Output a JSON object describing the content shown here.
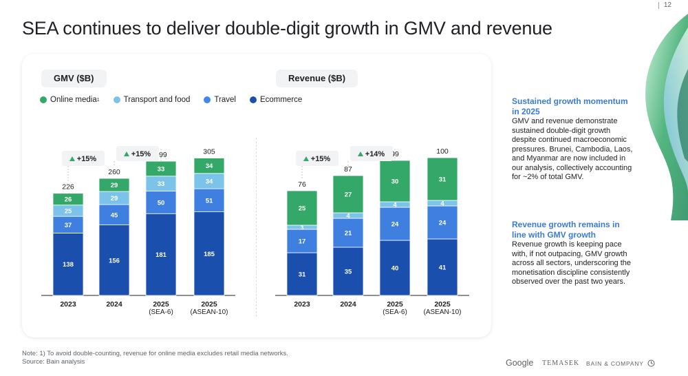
{
  "page_number": "12",
  "title": "SEA continues to deliver double-digit growth in GMV and revenue",
  "gmv_label": "GMV ($B)",
  "revenue_label": "Revenue ($B)",
  "legend": {
    "online": "Online media",
    "online_sup": "1",
    "transport": "Transport and food",
    "travel": "Travel",
    "ecommerce": "Ecommerce"
  },
  "colors": {
    "ecommerce": "#1a4fae",
    "travel": "#3e7fe0",
    "transport": "#7cc3ea",
    "online": "#34a868"
  },
  "chart_data": [
    {
      "type": "bar",
      "stacked": true,
      "title": "GMV ($B)",
      "categories": [
        "2023",
        "2024",
        "2025 (SEA-6)",
        "2025 (ASEAN-10)"
      ],
      "category_lines": [
        [
          "2023"
        ],
        [
          "2024"
        ],
        [
          "2025",
          "(SEA-6)"
        ],
        [
          "2025",
          "(ASEAN-10)"
        ]
      ],
      "series": [
        {
          "name": "Ecommerce",
          "values": [
            138,
            156,
            181,
            185
          ]
        },
        {
          "name": "Travel",
          "values": [
            37,
            45,
            50,
            51
          ]
        },
        {
          "name": "Transport and food",
          "values": [
            25,
            29,
            33,
            34
          ]
        },
        {
          "name": "Online media",
          "values": [
            26,
            29,
            33,
            34
          ]
        }
      ],
      "totals": [
        226,
        260,
        299,
        305
      ],
      "growth": [
        "+15%",
        "+15%"
      ],
      "ylim": [
        0,
        320
      ]
    },
    {
      "type": "bar",
      "stacked": true,
      "title": "Revenue ($B)",
      "categories": [
        "2023",
        "2024",
        "2025 (SEA-6)",
        "2025 (ASEAN-10)"
      ],
      "category_lines": [
        [
          "2023"
        ],
        [
          "2024"
        ],
        [
          "2025",
          "(SEA-6)"
        ],
        [
          "2025",
          "(ASEAN-10)"
        ]
      ],
      "series": [
        {
          "name": "Ecommerce",
          "values": [
            31,
            35,
            40,
            41
          ]
        },
        {
          "name": "Travel",
          "values": [
            17,
            21,
            24,
            24
          ]
        },
        {
          "name": "Transport and food",
          "values": [
            3,
            4,
            4,
            4
          ]
        },
        {
          "name": "Online media",
          "values": [
            25,
            27,
            30,
            31
          ]
        }
      ],
      "totals": [
        76,
        87,
        99,
        100
      ],
      "growth": [
        "+15%",
        "+14%"
      ],
      "ylim": [
        0,
        105
      ]
    }
  ],
  "side": {
    "h1": "Sustained growth momentum in 2025",
    "p1": "GMV and revenue demonstrate sustained double-digit growth despite continued macroeconomic pressures. Brunei, Cambodia, Laos, and Myanmar are now included in our analysis, collectively accounting for ~2% of total GMV.",
    "h2": "Revenue growth remains in line with GMV growth",
    "p2": "Revenue growth is keeping pace with, if not outpacing, GMV growth across all sectors, underscoring the monetisation discipline consistently observed over the past two years."
  },
  "note": {
    "line1": "Note: 1) To avoid double-counting, revenue for online media excludes retail media networks.",
    "line2": "Source: Bain analysis"
  },
  "logos": {
    "google": "Google",
    "temasek": "TEMASEK",
    "bain": "BAIN & COMPANY"
  }
}
